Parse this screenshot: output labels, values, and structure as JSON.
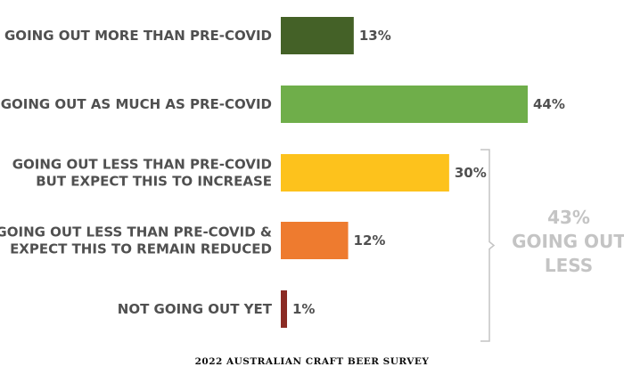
{
  "chart_data": {
    "type": "bar",
    "orientation": "horizontal",
    "categories": [
      [
        "GOING OUT MORE THAN PRE-COVID"
      ],
      [
        "GOING OUT AS MUCH AS PRE-COVID"
      ],
      [
        "GOING OUT LESS THAN PRE-COVID",
        "BUT EXPECT THIS TO INCREASE"
      ],
      [
        "GOING OUT LESS THAN PRE-COVID &",
        "EXPECT THIS TO REMAIN REDUCED"
      ],
      [
        "NOT GOING OUT YET"
      ]
    ],
    "values": [
      13,
      44,
      30,
      12,
      1
    ],
    "value_labels": [
      "13%",
      "44%",
      "30%",
      "12%",
      "1%"
    ],
    "colors": [
      "#446127",
      "#6fae4a",
      "#fdc21c",
      "#ee7b2f",
      "#8b2b24"
    ],
    "xlim": [
      0,
      44
    ],
    "grid": false,
    "group_annotation": {
      "lines": [
        "43%",
        "GOING OUT",
        "LESS"
      ],
      "spans_categories": [
        2,
        3,
        4
      ],
      "color": "#c4c4c4"
    }
  },
  "footer": "2022 AUSTRALIAN CRAFT BEER SURVEY"
}
